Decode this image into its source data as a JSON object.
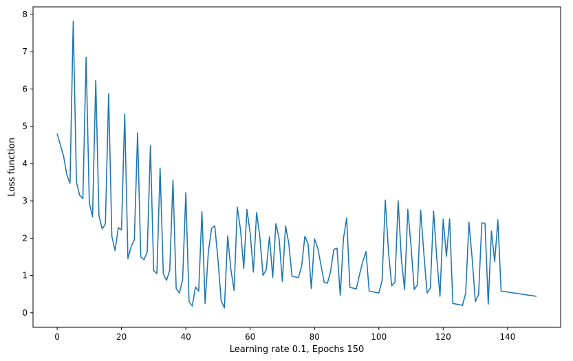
{
  "chart_data": {
    "type": "line",
    "title": "",
    "xlabel": "Learning rate 0.1, Epochs 150",
    "ylabel": "Loss function",
    "xlim": [
      -7.5,
      156.5
    ],
    "ylim": [
      -0.39,
      8.2
    ],
    "grid": false,
    "x_ticks": [
      0,
      20,
      40,
      60,
      80,
      100,
      120,
      140
    ],
    "y_ticks": [
      0,
      1,
      2,
      3,
      4,
      5,
      6,
      7,
      8
    ],
    "x_tick_labels": [
      "0",
      "20",
      "40",
      "60",
      "80",
      "100",
      "120",
      "140"
    ],
    "y_tick_labels": [
      "0",
      "1",
      "2",
      "3",
      "4",
      "5",
      "6",
      "7",
      "8"
    ],
    "series": [
      {
        "color": "#1f77b4",
        "x": [
          0,
          2,
          3,
          4,
          5,
          6,
          7,
          8,
          9,
          10,
          11,
          12,
          13,
          14,
          15,
          16,
          17,
          18,
          19,
          20,
          21,
          22,
          23,
          24,
          25,
          26,
          27,
          28,
          29,
          30,
          31,
          32,
          33,
          34,
          35,
          36,
          37,
          38,
          39,
          40,
          41,
          42,
          43,
          44,
          45,
          46,
          47,
          48,
          49,
          50,
          51,
          52,
          53,
          54,
          55,
          56,
          57,
          58,
          59,
          60,
          61,
          62,
          63,
          64,
          65,
          66,
          67,
          68,
          69,
          70,
          71,
          72,
          73,
          75,
          76,
          77,
          78,
          79,
          80,
          81,
          83,
          84,
          85,
          86,
          87,
          88,
          89,
          90,
          91,
          93,
          94,
          95,
          96,
          97,
          100,
          101,
          102,
          103,
          104,
          105,
          106,
          107,
          108,
          109,
          110,
          111,
          112,
          113,
          114,
          115,
          116,
          117,
          118,
          119,
          120,
          121,
          122,
          123,
          126,
          127,
          128,
          129,
          130,
          131,
          132,
          133,
          134,
          135,
          136,
          137,
          138,
          149
        ],
        "y": [
          4.8,
          4.2,
          3.7,
          3.47,
          7.82,
          3.5,
          3.15,
          3.06,
          6.85,
          2.95,
          2.57,
          6.23,
          2.6,
          2.25,
          2.38,
          5.87,
          2.05,
          1.67,
          2.28,
          2.22,
          5.33,
          1.45,
          1.77,
          1.96,
          4.82,
          1.5,
          1.42,
          1.63,
          4.48,
          1.13,
          1.05,
          3.88,
          1.04,
          0.87,
          1.14,
          3.56,
          0.65,
          0.53,
          0.88,
          3.22,
          0.3,
          0.18,
          0.69,
          0.58,
          2.71,
          0.25,
          1.63,
          2.26,
          2.33,
          1.41,
          0.31,
          0.13,
          2.06,
          1.16,
          0.6,
          2.83,
          2.22,
          1.19,
          2.77,
          2.13,
          1.09,
          2.69,
          2.04,
          1.0,
          1.16,
          2.04,
          0.95,
          2.39,
          1.99,
          0.84,
          2.33,
          1.86,
          0.98,
          0.94,
          1.25,
          2.05,
          1.85,
          0.65,
          1.98,
          1.74,
          0.82,
          0.79,
          1.11,
          1.7,
          1.73,
          0.47,
          1.99,
          2.54,
          0.68,
          0.64,
          1.03,
          1.37,
          1.64,
          0.58,
          0.53,
          0.86,
          3.02,
          1.63,
          0.72,
          0.82,
          3.0,
          1.44,
          0.62,
          2.77,
          1.79,
          0.62,
          0.75,
          2.75,
          1.58,
          0.53,
          0.66,
          2.73,
          1.48,
          0.44,
          2.51,
          1.51,
          2.52,
          0.25,
          0.2,
          0.53,
          2.43,
          1.46,
          0.3,
          0.49,
          2.41,
          2.4,
          0.23,
          2.19,
          1.37,
          2.49,
          0.58,
          0.44
        ]
      }
    ]
  }
}
